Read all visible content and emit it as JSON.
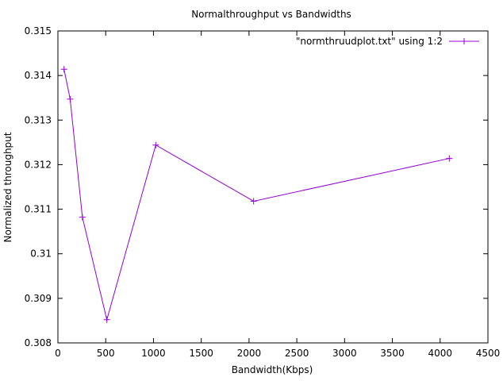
{
  "chart_data": {
    "type": "line",
    "title": "Normalthroughput vs Bandwidths",
    "xlabel": "Bandwidth(Kbps)",
    "ylabel": "Normalized throughput",
    "xlim": [
      0,
      4500
    ],
    "ylim": [
      0.308,
      0.315
    ],
    "x_ticks": [
      0,
      500,
      1000,
      1500,
      2000,
      2500,
      3000,
      3500,
      4000,
      4500
    ],
    "y_ticks": [
      0.308,
      0.309,
      0.31,
      0.311,
      0.312,
      0.313,
      0.314,
      0.315
    ],
    "y_tick_labels": [
      "0.308",
      "0.309",
      "0.31",
      "0.311",
      "0.312",
      "0.313",
      "0.314",
      "0.315"
    ],
    "grid": false,
    "legend_position": "top-right",
    "series": [
      {
        "name": "\"normthruudplot.txt\" using 1:2",
        "color": "#9400d3",
        "marker": "plus",
        "x": [
          64,
          128,
          256,
          512,
          1024,
          2048,
          4096
        ],
        "y": [
          0.31414,
          0.31347,
          0.31082,
          0.30852,
          0.31244,
          0.31118,
          0.31214
        ]
      }
    ]
  }
}
